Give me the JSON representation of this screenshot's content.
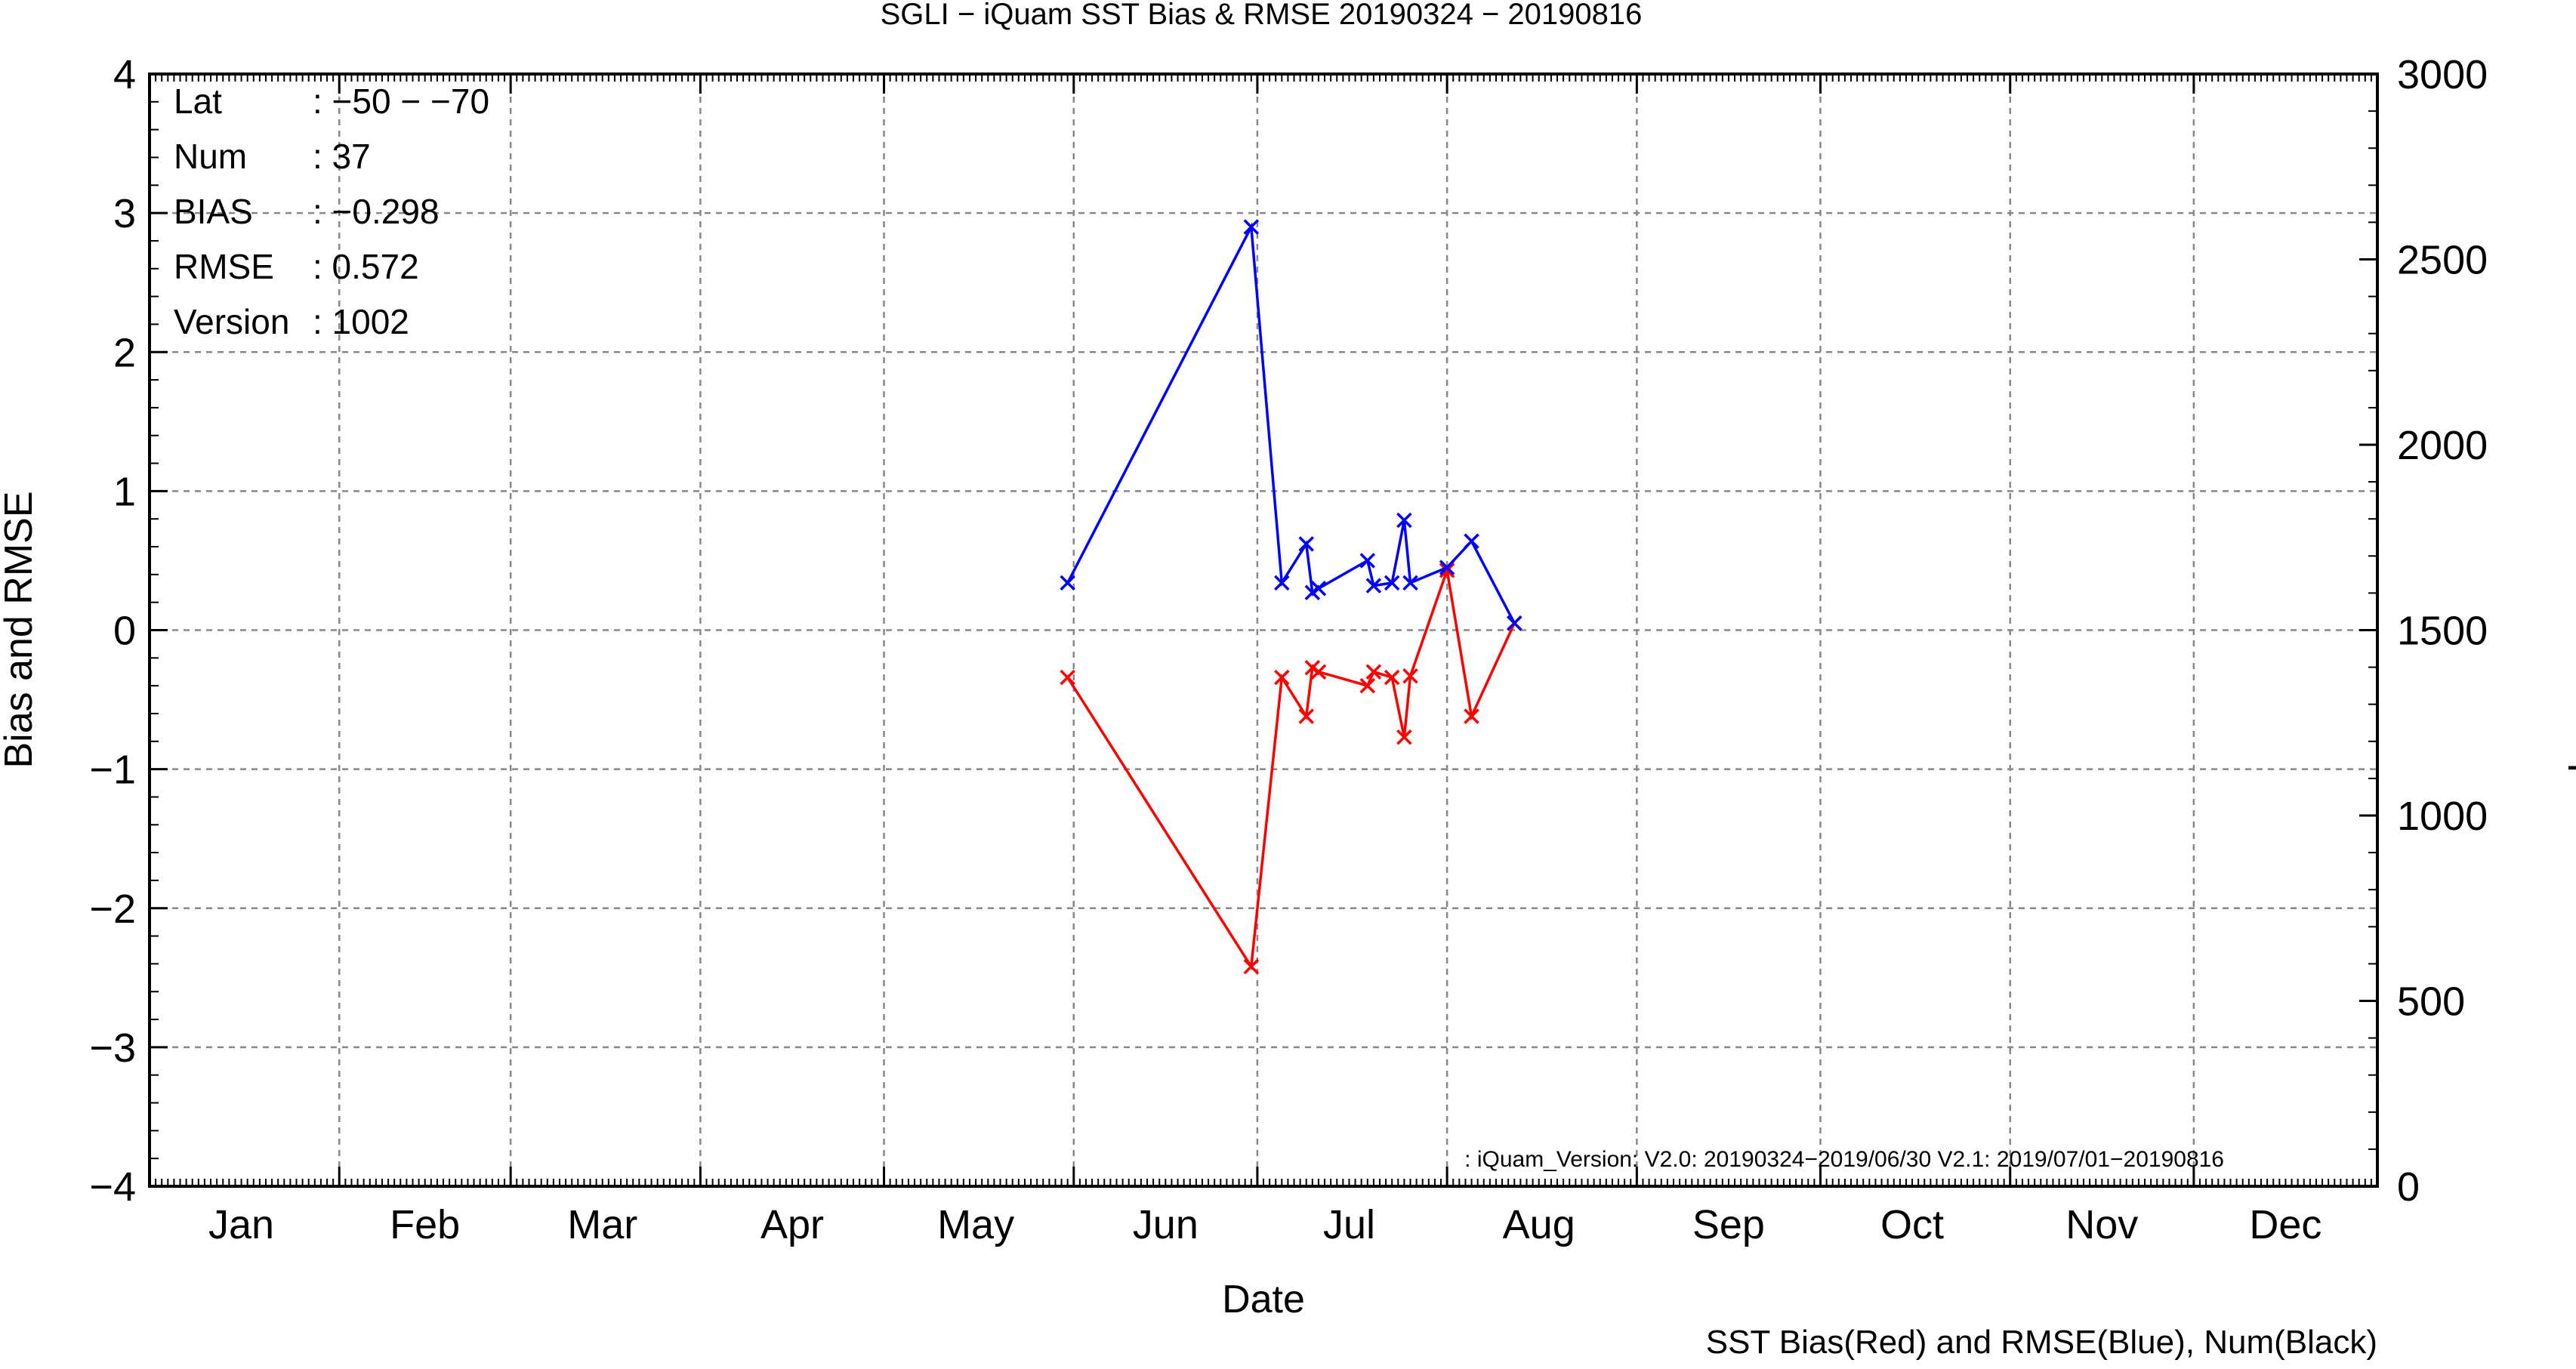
{
  "chart_data": {
    "type": "line",
    "title": "SGLI − iQuam  SST Bias & RMSE 20190324 − 20190816",
    "xlabel": "Date",
    "ylabel": "Bias and RMSE",
    "y2label": "Num of Match−up",
    "footer": "SST Bias(Red) and RMSE(Blue), Num(Black)",
    "iquam_note": ": iQuam_Version: V2.0: 20190324−2019/06/30 V2.1: 2019/07/01−20190816",
    "ylim": [
      -4,
      4
    ],
    "y2lim": [
      0,
      3000
    ],
    "xlim": [
      "2019-01-01",
      "2019-12-31"
    ],
    "grid": true,
    "month_boundaries": [
      "2019-01-01",
      "2019-02-01",
      "2019-03-01",
      "2019-04-01",
      "2019-05-01",
      "2019-06-01",
      "2019-07-01",
      "2019-08-01",
      "2019-09-01",
      "2019-10-01",
      "2019-11-01",
      "2019-12-01",
      "2020-01-01"
    ],
    "xticklabels": [
      {
        "label": "Jan",
        "date": "2019-01-16"
      },
      {
        "label": "Feb",
        "date": "2019-02-15"
      },
      {
        "label": "Mar",
        "date": "2019-03-16"
      },
      {
        "label": "Apr",
        "date": "2019-04-16"
      },
      {
        "label": "May",
        "date": "2019-05-16"
      },
      {
        "label": "Jun",
        "date": "2019-06-16"
      },
      {
        "label": "Jul",
        "date": "2019-07-16"
      },
      {
        "label": "Aug",
        "date": "2019-08-16"
      },
      {
        "label": "Sep",
        "date": "2019-09-16"
      },
      {
        "label": "Oct",
        "date": "2019-10-16"
      },
      {
        "label": "Nov",
        "date": "2019-11-16"
      },
      {
        "label": "Dec",
        "date": "2019-12-16"
      }
    ],
    "yticks": [
      {
        "value": 4,
        "label": "4"
      },
      {
        "value": 3,
        "label": "3"
      },
      {
        "value": 2,
        "label": "2"
      },
      {
        "value": 1,
        "label": "1"
      },
      {
        "value": 0,
        "label": "0"
      },
      {
        "value": -1,
        "label": "−1"
      },
      {
        "value": -2,
        "label": "−2"
      },
      {
        "value": -3,
        "label": "−3"
      },
      {
        "value": -4,
        "label": "−4"
      }
    ],
    "y2ticks": [
      {
        "value": 3000,
        "label": "3000"
      },
      {
        "value": 2500,
        "label": "2500"
      },
      {
        "value": 2000,
        "label": "2000"
      },
      {
        "value": 1500,
        "label": "1500"
      },
      {
        "value": 1000,
        "label": "1000"
      },
      {
        "value": 500,
        "label": "500"
      },
      {
        "value": 0,
        "label": "0"
      }
    ],
    "stats": [
      {
        "key": "Lat",
        "value": ": −50 − −70"
      },
      {
        "key": "Num",
        "value": ": 37"
      },
      {
        "key": "BIAS",
        "value": ": −0.298"
      },
      {
        "key": "RMSE",
        "value": ": 0.572"
      },
      {
        "key": "Version",
        "value": ": 1002"
      }
    ],
    "series": [
      {
        "role": "bias",
        "color": "#ff0000",
        "x": [
          "2019-05-31",
          "2019-06-30",
          "2019-07-05",
          "2019-07-09",
          "2019-07-10",
          "2019-07-11",
          "2019-07-19",
          "2019-07-20",
          "2019-07-23",
          "2019-07-25",
          "2019-07-26",
          "2019-08-01",
          "2019-08-05",
          "2019-08-12"
        ],
        "y": [
          -0.34,
          -2.42,
          -0.34,
          -0.62,
          -0.27,
          -0.3,
          -0.4,
          -0.3,
          -0.34,
          -0.77,
          -0.33,
          0.43,
          -0.62,
          0.05
        ]
      },
      {
        "role": "rmse",
        "color": "#0000ff",
        "x": [
          "2019-05-31",
          "2019-06-30",
          "2019-07-05",
          "2019-07-09",
          "2019-07-10",
          "2019-07-11",
          "2019-07-19",
          "2019-07-20",
          "2019-07-23",
          "2019-07-25",
          "2019-07-26",
          "2019-08-01",
          "2019-08-05",
          "2019-08-12"
        ],
        "y": [
          0.34,
          2.9,
          0.34,
          0.62,
          0.27,
          0.3,
          0.5,
          0.32,
          0.34,
          0.79,
          0.34,
          0.45,
          0.64,
          0.05
        ]
      }
    ]
  }
}
